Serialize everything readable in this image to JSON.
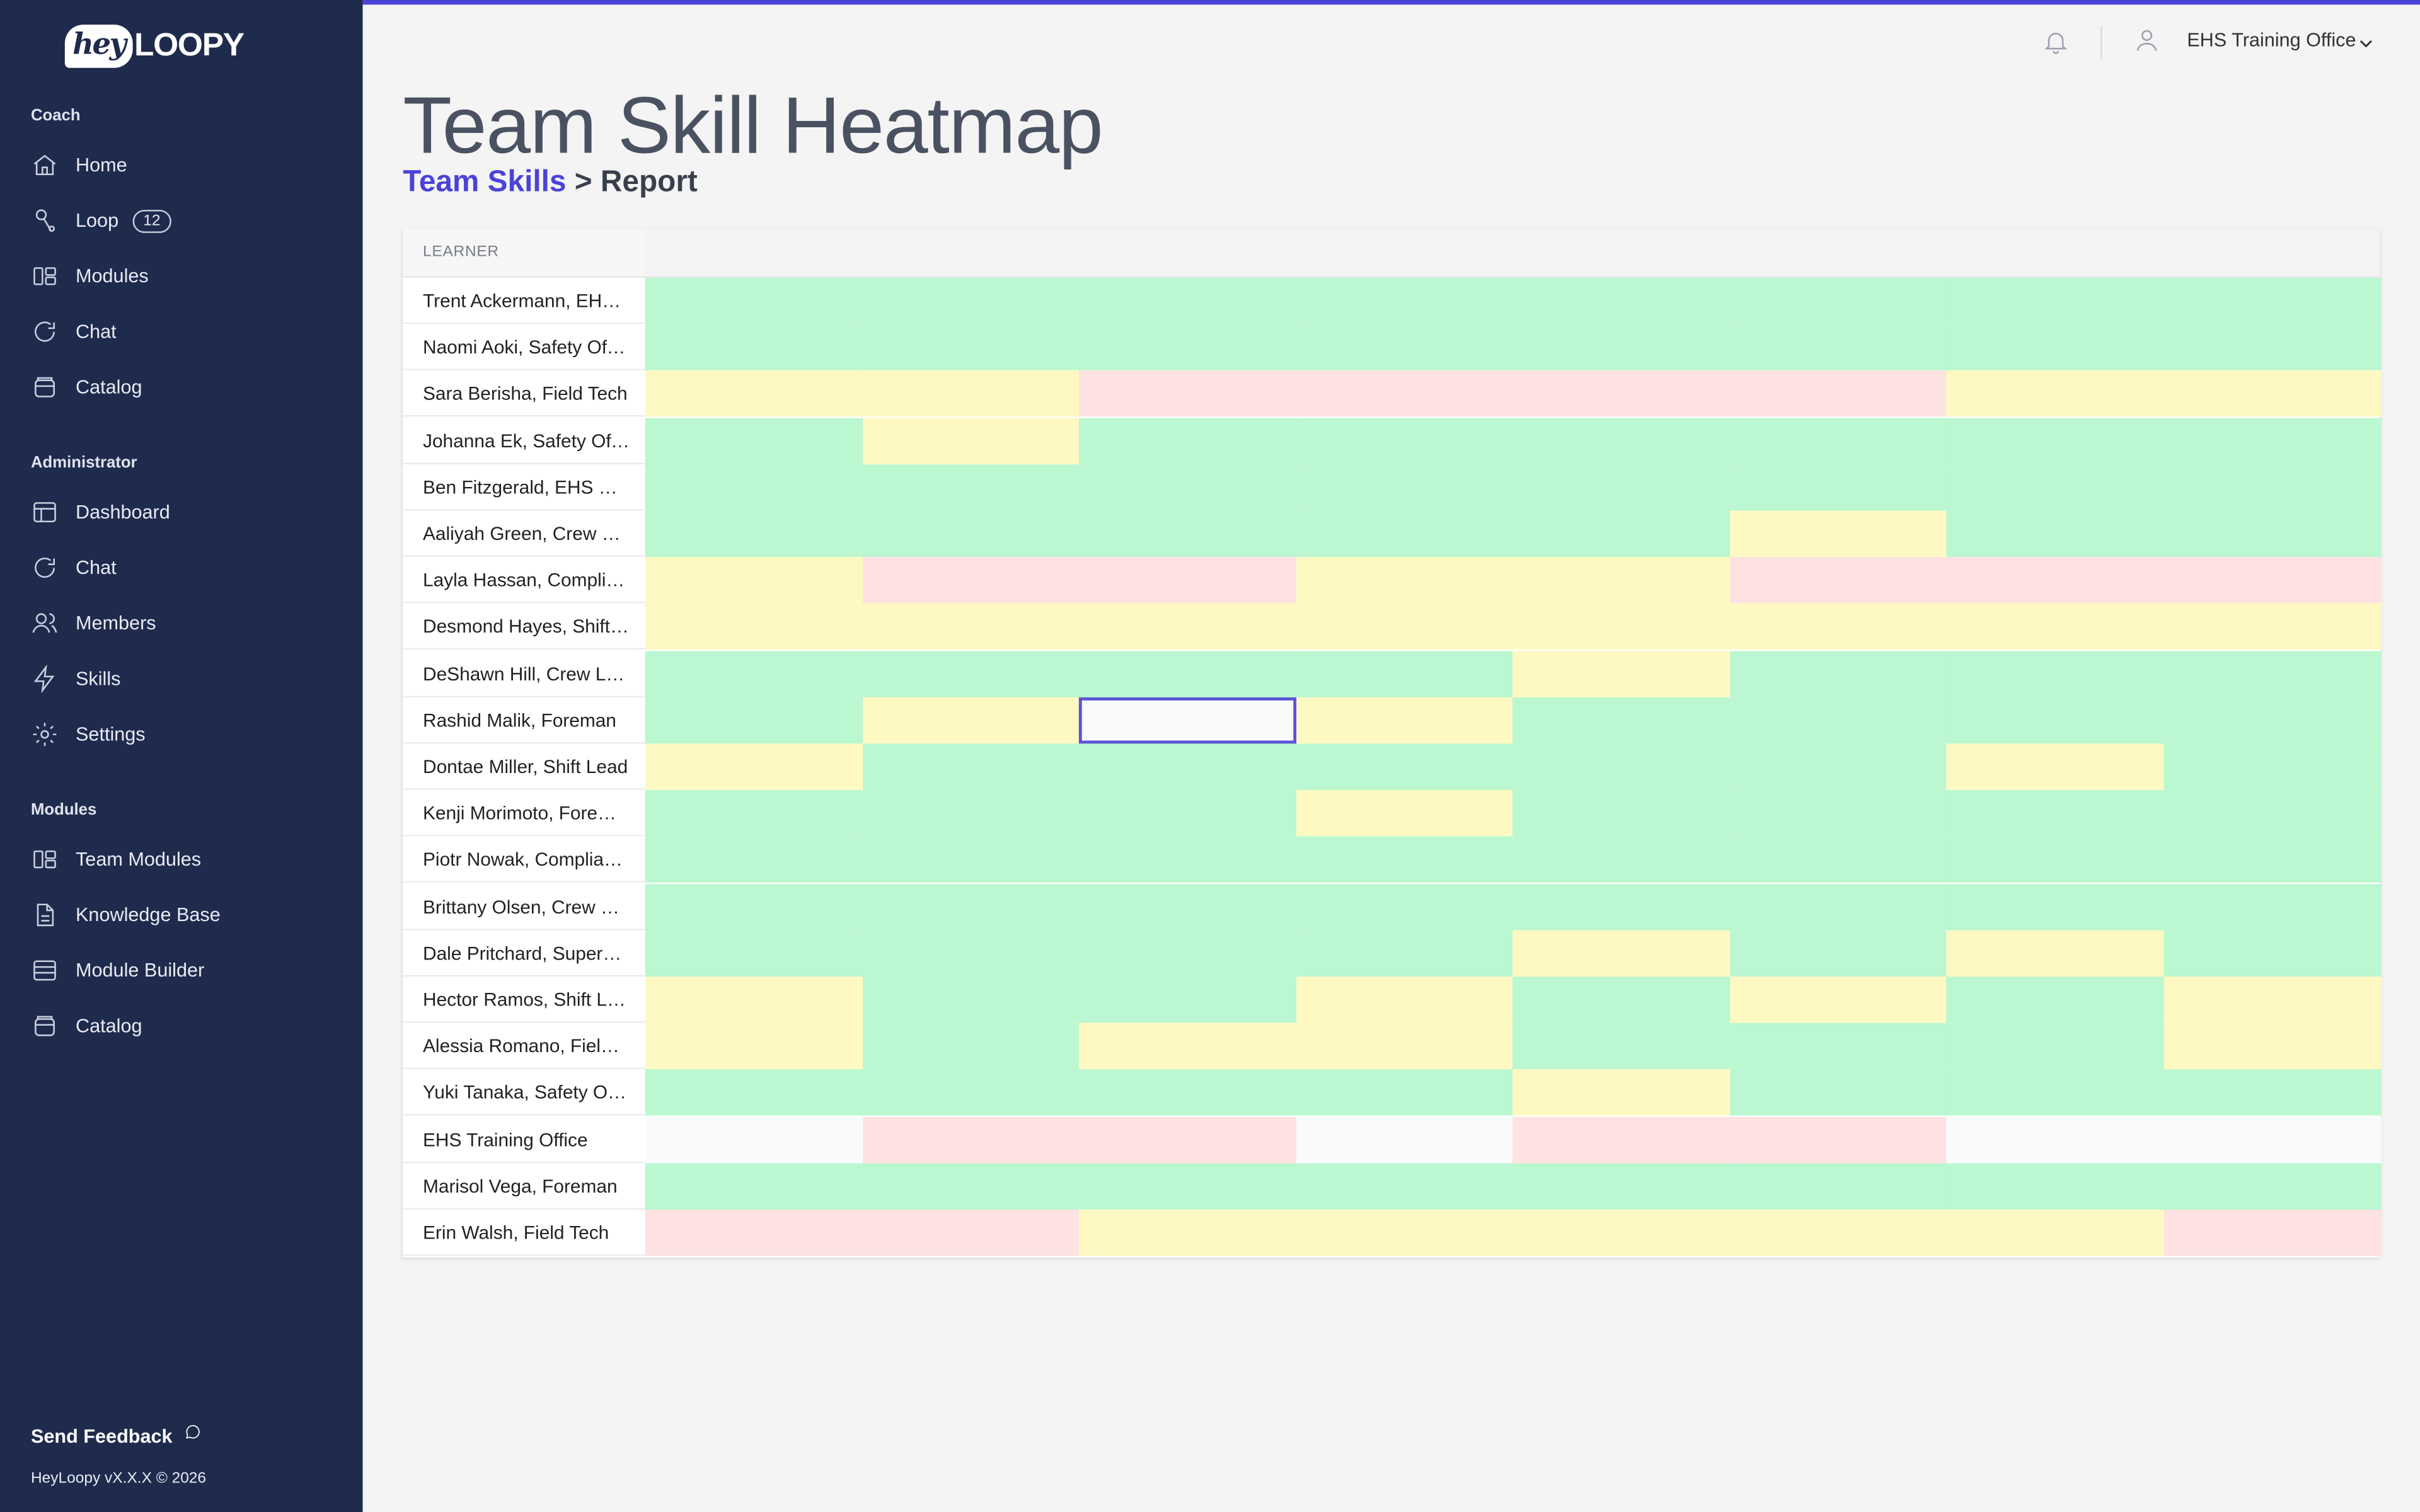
{
  "brand": {
    "hey": "hey",
    "loopy": "LOOPY"
  },
  "sidebar": {
    "sections": [
      {
        "title": "Coach",
        "items": [
          {
            "label": "Home",
            "icon": "home-icon"
          },
          {
            "label": "Loop",
            "icon": "loop-icon",
            "badge": "12"
          },
          {
            "label": "Modules",
            "icon": "modules-icon"
          },
          {
            "label": "Chat",
            "icon": "chat-icon"
          },
          {
            "label": "Catalog",
            "icon": "catalog-icon"
          }
        ]
      },
      {
        "title": "Administrator",
        "items": [
          {
            "label": "Dashboard",
            "icon": "dashboard-icon"
          },
          {
            "label": "Chat",
            "icon": "chat-icon"
          },
          {
            "label": "Members",
            "icon": "members-icon"
          },
          {
            "label": "Skills",
            "icon": "bolt-icon"
          },
          {
            "label": "Settings",
            "icon": "gear-icon"
          }
        ]
      },
      {
        "title": "Modules",
        "items": [
          {
            "label": "Team Modules",
            "icon": "modules-icon"
          },
          {
            "label": "Knowledge Base",
            "icon": "document-icon"
          },
          {
            "label": "Module Builder",
            "icon": "list-icon"
          },
          {
            "label": "Catalog",
            "icon": "catalog-icon"
          }
        ]
      }
    ],
    "feedback": "Send Feedback",
    "version": "HeyLoopy vX.X.X © 2026"
  },
  "header": {
    "user": "EHS Training Office"
  },
  "page": {
    "title": "Team Skill Heatmap",
    "breadcrumb_link": "Team Skills",
    "breadcrumb_sep": " > ",
    "breadcrumb_current": "Report"
  },
  "heatmap": {
    "column_header": "LEARNER",
    "colors": {
      "G": "#bbf7d0",
      "Y": "#fef9c3",
      "R": "#fee2e2",
      "E": "#f9fafb"
    },
    "selected": {
      "row": 9,
      "col": 2
    },
    "rows": [
      {
        "learner": "Trent Ackermann, EHS Manager",
        "cells": "GGGGGGGG"
      },
      {
        "learner": "Naomi Aoki, Safety Officer",
        "cells": "GGGGGGGG"
      },
      {
        "learner": "Sara Berisha, Field Tech",
        "cells": "YYRRRRYY"
      },
      {
        "learner": "Johanna Ek, Safety Officer",
        "cells": "GYGGGGGG"
      },
      {
        "learner": "Ben Fitzgerald, EHS Manager",
        "cells": "GGGGGGGG"
      },
      {
        "learner": "Aaliyah Green, Crew Lead",
        "cells": "GGGGGYGG"
      },
      {
        "learner": "Layla Hassan, Compliance Officer",
        "cells": "YRRYYRRR"
      },
      {
        "learner": "Desmond Hayes, Shift Lead",
        "cells": "YYYYYYYY"
      },
      {
        "learner": "DeShawn Hill, Crew Lead",
        "cells": "GGGGYGGG"
      },
      {
        "learner": "Rashid Malik, Foreman",
        "cells": "GYEYGGGG"
      },
      {
        "learner": "Dontae Miller, Shift Lead",
        "cells": "YGGGGGYG"
      },
      {
        "learner": "Kenji Morimoto, Foreman",
        "cells": "GGGYGGGG"
      },
      {
        "learner": "Piotr Nowak, Compliance Officer",
        "cells": "GGGGGGGG"
      },
      {
        "learner": "Brittany Olsen, Crew Lead",
        "cells": "GGGGGGGG"
      },
      {
        "learner": "Dale Pritchard, Supervisor",
        "cells": "GGGGYGYG"
      },
      {
        "learner": "Hector Ramos, Shift Lead",
        "cells": "YGGYGYGY"
      },
      {
        "learner": "Alessia Romano, Field Tech",
        "cells": "YGYYGGGY"
      },
      {
        "learner": "Yuki Tanaka, Safety Officer",
        "cells": "GGGGYGGG"
      },
      {
        "learner": "EHS Training Office",
        "cells": "ERRERREE"
      },
      {
        "learner": "Marisol Vega, Foreman",
        "cells": "GGGGGGGG"
      },
      {
        "learner": "Erin Walsh, Field Tech",
        "cells": "RRYYYYYR"
      }
    ]
  }
}
